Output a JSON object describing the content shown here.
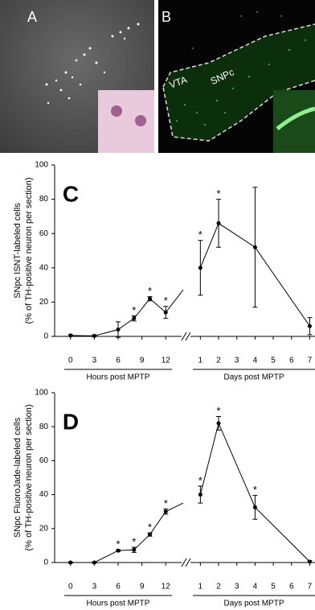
{
  "image_panels": [
    {
      "label": "A"
    },
    {
      "label": "B",
      "annotations": [
        "VTA",
        "SNPc"
      ]
    }
  ],
  "chart_data": [
    {
      "type": "line",
      "panel_label": "C",
      "y_label": [
        "SNpc ISNT-labeled cells",
        "(% of TH-positive neuron per section)"
      ],
      "ylim": [
        0,
        100
      ],
      "yticks": [
        0,
        20,
        40,
        60,
        80,
        100
      ],
      "color": "#000000",
      "significance_marker": "*",
      "x_axes": [
        {
          "label": "Hours post MPTP",
          "xlim": [
            -2,
            14
          ],
          "xticks": [
            0,
            3,
            6,
            9,
            12
          ]
        },
        {
          "label": "Days post MPTP",
          "xlim": [
            0.5,
            7.2
          ],
          "xticks": [
            1,
            2,
            3,
            4,
            5,
            6,
            7
          ]
        }
      ],
      "series": [
        {
          "x_axis": 0,
          "x": [
            0,
            3,
            6,
            8,
            10,
            12
          ],
          "values": [
            0.5,
            0.3,
            4,
            10.5,
            22,
            14
          ],
          "errors": [
            0.5,
            0.5,
            4.5,
            1.5,
            1.2,
            3.5
          ],
          "significant": [
            false,
            false,
            false,
            true,
            true,
            true
          ]
        },
        {
          "x_axis": 1,
          "x": [
            1,
            2,
            4,
            7
          ],
          "values": [
            40,
            66,
            52,
            6
          ],
          "errors": [
            16,
            14,
            35,
            5
          ],
          "significant": [
            true,
            true,
            false,
            false
          ]
        }
      ]
    },
    {
      "type": "line",
      "panel_label": "D",
      "y_label": [
        "SNpc FluoroJade-labeled cells",
        "(% of TH-positive neuron per section)"
      ],
      "ylim": [
        0,
        100
      ],
      "yticks": [
        0,
        20,
        40,
        60,
        80,
        100
      ],
      "color": "#000000",
      "significance_marker": "*",
      "x_axes": [
        {
          "label": "Hours post MPTP",
          "xlim": [
            -2,
            14
          ],
          "xticks": [
            0,
            3,
            6,
            9,
            12
          ]
        },
        {
          "label": "Days post MPTP",
          "xlim": [
            0.5,
            7.2
          ],
          "xticks": [
            1,
            2,
            3,
            4,
            5,
            6,
            7
          ]
        }
      ],
      "series": [
        {
          "x_axis": 0,
          "x": [
            0,
            3,
            6,
            8,
            10,
            12
          ],
          "values": [
            0,
            0,
            7,
            7.5,
            16.5,
            30
          ],
          "errors": [
            0.3,
            0.3,
            0.6,
            1.5,
            1,
            1.5
          ],
          "significant": [
            false,
            false,
            true,
            true,
            true,
            true
          ]
        },
        {
          "x_axis": 1,
          "x": [
            1,
            2,
            4,
            7
          ],
          "values": [
            40,
            82,
            32.5,
            0.5
          ],
          "errors": [
            5,
            4,
            7,
            0.5
          ],
          "significant": [
            true,
            true,
            true,
            false
          ]
        }
      ]
    }
  ]
}
